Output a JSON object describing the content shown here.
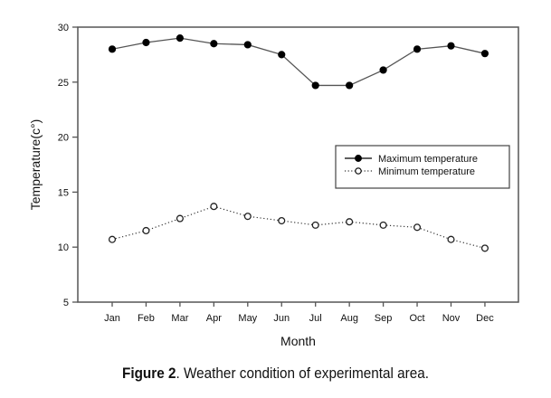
{
  "chart_data": {
    "type": "line",
    "title": "",
    "xlabel": "Month",
    "ylabel": "Temperature(c°)",
    "categories": [
      "Jan",
      "Feb",
      "Mar",
      "Apr",
      "May",
      "Jun",
      "Jul",
      "Aug",
      "Sep",
      "Oct",
      "Nov",
      "Dec"
    ],
    "ylim": [
      5,
      30
    ],
    "yticks": [
      5,
      10,
      15,
      20,
      25,
      30
    ],
    "grid": false,
    "legend_position": "center-right",
    "series": [
      {
        "name": "Maximum temperature",
        "style": "solid",
        "marker": "filled-circle",
        "color": "#000000",
        "values": [
          28.0,
          28.6,
          29.0,
          28.5,
          28.4,
          27.5,
          24.7,
          24.7,
          26.1,
          28.0,
          28.3,
          27.6
        ]
      },
      {
        "name": "Minimum temperature",
        "style": "dotted",
        "marker": "open-circle",
        "color": "#000000",
        "values": [
          10.7,
          11.5,
          12.6,
          13.7,
          12.8,
          12.4,
          12.0,
          12.3,
          12.0,
          11.8,
          10.7,
          9.9
        ]
      }
    ]
  },
  "caption": {
    "label": "Figure 2",
    "text": ". Weather condition of experimental area."
  }
}
